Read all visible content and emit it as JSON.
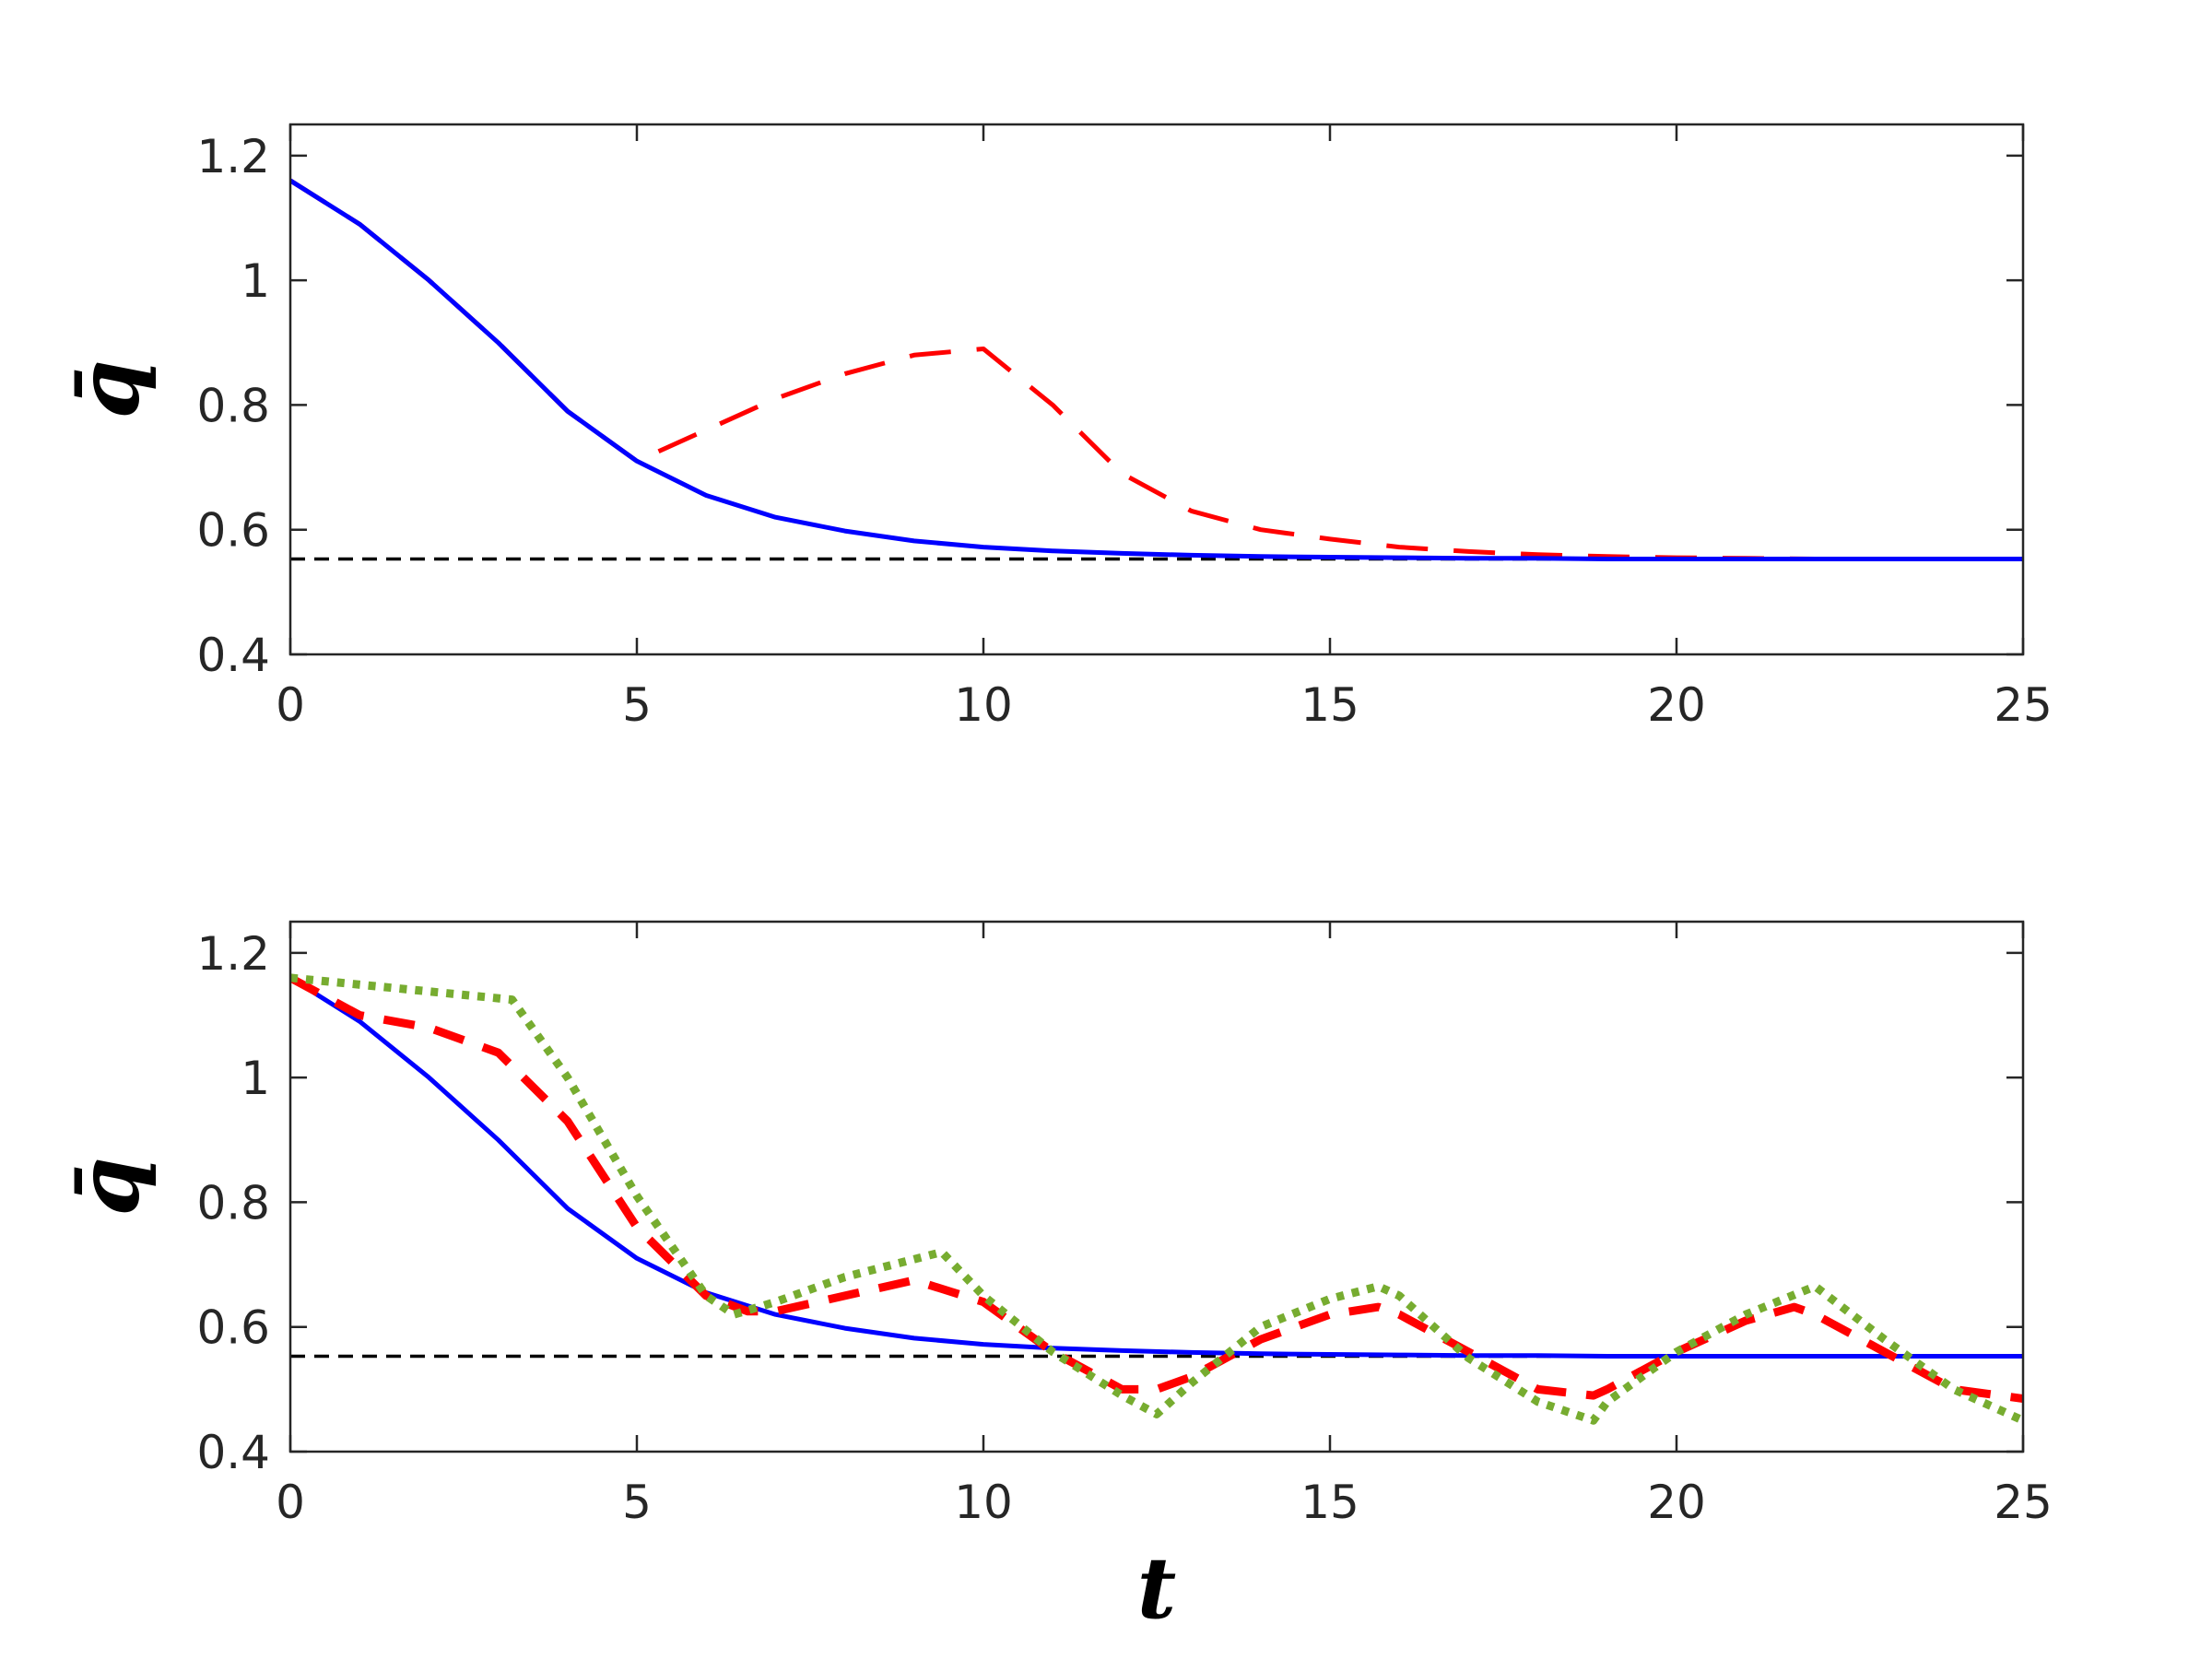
{
  "chart_data": [
    {
      "type": "line",
      "title": "",
      "xlabel": "",
      "ylabel": "q̄",
      "xlim": [
        0,
        25
      ],
      "ylim": [
        0.4,
        1.25
      ],
      "xticks": [
        0,
        5,
        10,
        15,
        20,
        25
      ],
      "yticks": [
        0.4,
        0.6,
        0.8,
        1,
        1.2
      ],
      "xtick_labels": [
        "0",
        "5",
        "10",
        "15",
        "20",
        "25"
      ],
      "ytick_labels": [
        "0.4",
        "0.6",
        "0.8",
        "1",
        "1.2"
      ],
      "grid": false,
      "series": [
        {
          "style": "dashed-thin",
          "color": "#000000",
          "x": [
            0,
            25
          ],
          "y": [
            0.553,
            0.553
          ]
        },
        {
          "style": "long-dash",
          "color": "#ff0000",
          "x": [
            0,
            1,
            2,
            3,
            4,
            5,
            6,
            7,
            8,
            9,
            10,
            11,
            12,
            13,
            14,
            15,
            16,
            17,
            18,
            19,
            20,
            21,
            22,
            23,
            24,
            25
          ],
          "y": [
            1.16,
            1.09,
            1.0,
            0.9,
            0.79,
            0.71,
            0.76,
            0.81,
            0.85,
            0.88,
            0.89,
            0.8,
            0.69,
            0.63,
            0.6,
            0.585,
            0.572,
            0.565,
            0.56,
            0.557,
            0.555,
            0.554,
            0.553,
            0.553,
            0.553,
            0.553
          ]
        },
        {
          "style": "solid",
          "color": "#0000ff",
          "x": [
            0,
            1,
            2,
            3,
            4,
            5,
            6,
            7,
            8,
            9,
            10,
            11,
            12,
            13,
            14,
            15,
            16,
            17,
            18,
            19,
            20,
            21,
            22,
            23,
            24,
            25
          ],
          "y": [
            1.16,
            1.09,
            1.0,
            0.9,
            0.79,
            0.71,
            0.655,
            0.62,
            0.598,
            0.582,
            0.572,
            0.566,
            0.562,
            0.559,
            0.557,
            0.556,
            0.555,
            0.554,
            0.554,
            0.553,
            0.553,
            0.553,
            0.553,
            0.553,
            0.553,
            0.553
          ]
        }
      ]
    },
    {
      "type": "line",
      "title": "",
      "xlabel": "t",
      "ylabel": "q̄",
      "xlim": [
        0,
        25
      ],
      "ylim": [
        0.4,
        1.25
      ],
      "xticks": [
        0,
        5,
        10,
        15,
        20,
        25
      ],
      "yticks": [
        0.4,
        0.6,
        0.8,
        1,
        1.2
      ],
      "xtick_labels": [
        "0",
        "5",
        "10",
        "15",
        "20",
        "25"
      ],
      "ytick_labels": [
        "0.4",
        "0.6",
        "0.8",
        "1",
        "1.2"
      ],
      "grid": false,
      "series": [
        {
          "style": "dashed-thin",
          "color": "#000000",
          "x": [
            0,
            25
          ],
          "y": [
            0.553,
            0.553
          ]
        },
        {
          "style": "solid",
          "color": "#0000ff",
          "x": [
            0,
            1,
            2,
            3,
            4,
            5,
            6,
            7,
            8,
            9,
            10,
            11,
            12,
            13,
            14,
            15,
            16,
            17,
            18,
            19,
            20,
            21,
            22,
            23,
            24,
            25
          ],
          "y": [
            1.16,
            1.09,
            1.0,
            0.9,
            0.79,
            0.71,
            0.655,
            0.62,
            0.598,
            0.582,
            0.572,
            0.566,
            0.562,
            0.559,
            0.557,
            0.556,
            0.555,
            0.554,
            0.554,
            0.553,
            0.553,
            0.553,
            0.553,
            0.553,
            0.553,
            0.553
          ]
        },
        {
          "style": "bold-dash",
          "color": "#ff0000",
          "x": [
            0,
            1,
            2,
            3,
            4,
            5,
            6,
            6.6,
            7,
            8,
            9,
            10,
            11,
            12,
            12.5,
            13,
            14,
            15,
            15.7,
            16,
            17,
            18,
            18.8,
            19,
            20,
            21,
            21.7,
            22,
            23,
            24,
            25
          ],
          "y": [
            1.16,
            1.1,
            1.08,
            1.04,
            0.93,
            0.76,
            0.65,
            0.625,
            0.625,
            0.65,
            0.675,
            0.64,
            0.56,
            0.5,
            0.5,
            0.52,
            0.58,
            0.62,
            0.632,
            0.62,
            0.56,
            0.5,
            0.49,
            0.5,
            0.56,
            0.61,
            0.632,
            0.62,
            0.56,
            0.5,
            0.485
          ]
        },
        {
          "style": "dotted",
          "color": "#77ac30",
          "x": [
            0,
            3.2,
            4,
            5,
            6,
            6.4,
            7,
            8,
            9.4,
            10,
            11,
            12,
            12.5,
            13,
            14,
            15,
            15.7,
            16,
            17,
            18,
            18.8,
            19,
            20,
            21,
            22,
            23,
            24,
            25
          ],
          "y": [
            1.16,
            1.125,
            1.0,
            0.81,
            0.65,
            0.62,
            0.64,
            0.68,
            0.72,
            0.65,
            0.56,
            0.49,
            0.46,
            0.51,
            0.6,
            0.645,
            0.665,
            0.65,
            0.55,
            0.48,
            0.45,
            0.48,
            0.56,
            0.62,
            0.665,
            0.58,
            0.5,
            0.45
          ]
        }
      ]
    }
  ]
}
